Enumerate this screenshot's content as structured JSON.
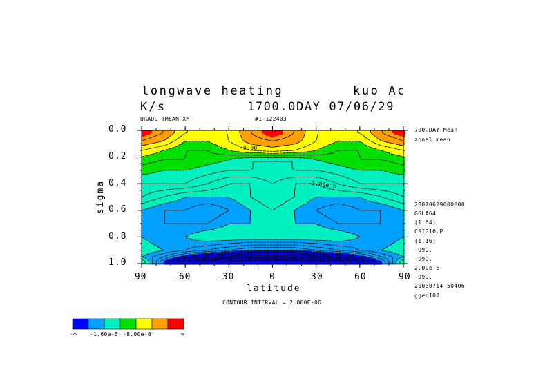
{
  "header": {
    "title_left": "longwave heating",
    "title_right": "kuo Ac",
    "units": "K/s",
    "time": "1700.0DAY 07/06/29",
    "variable": "QRADL TMEAN XM",
    "run_id": "#1-122403"
  },
  "side_info": [
    "700.DAY Mean",
    "zonal mean",
    "20070629000000",
    "GGLA64",
    "(1.64)",
    "CSIG16.P",
    "(1.16)",
    "-999.",
    "-999.",
    "2.00e-6",
    "-999.",
    "20030714  50406",
    "ggec102"
  ],
  "contour_interval": "CONTOUR INTERVAL = 2.000E-06",
  "contour_labels": [
    "0.00",
    "-1.00e-5"
  ],
  "colorbar": {
    "colors": [
      "#0000ff",
      "#00a0ff",
      "#00f0c0",
      "#00e000",
      "#ffff00",
      "#ffa000",
      "#ff0000"
    ],
    "labels": [
      "-∞",
      "-1.60e-5",
      "-8.00e-6",
      "∞"
    ]
  },
  "chart_data": {
    "type": "heatmap",
    "title": "longwave heating",
    "xlabel": "latitude",
    "ylabel": "sigma",
    "xlim": [
      -90,
      90
    ],
    "ylim": [
      1.0,
      0.0
    ],
    "x_ticks": [
      -90,
      -60,
      -30,
      0,
      30,
      60,
      90
    ],
    "x_tick_labels": [
      "-90",
      "-60",
      "-30",
      "0",
      "30",
      "60",
      "90"
    ],
    "y_ticks": [
      0.0,
      0.2,
      0.4,
      0.6,
      0.8,
      1.0
    ],
    "y_tick_labels": [
      "0.0",
      "0.2",
      "0.4",
      "0.6",
      "0.8",
      "1.0"
    ],
    "levels": [
      -1.6e-05,
      -8e-06,
      0.0
    ],
    "lat": [
      -90,
      -75,
      -60,
      -45,
      -30,
      -15,
      0,
      15,
      30,
      45,
      60,
      75,
      90
    ],
    "sigma": [
      0.02,
      0.08,
      0.15,
      0.22,
      0.3,
      0.4,
      0.5,
      0.6,
      0.7,
      0.8,
      0.9,
      0.95,
      0.985
    ],
    "values": [
      [
        4e-06,
        2e-06,
        -2e-06,
        -2e-06,
        -2e-06,
        2e-06,
        4e-06,
        2e-06,
        -2e-06,
        -2e-06,
        -2e-06,
        2e-06,
        4e-06
      ],
      [
        2e-06,
        0.0,
        -4e-06,
        -4e-06,
        -2e-06,
        1e-06,
        2e-06,
        1e-06,
        -2e-06,
        -4e-06,
        -4e-06,
        0.0,
        2e-06
      ],
      [
        -2e-06,
        -4e-06,
        -6e-06,
        -6e-06,
        -4e-06,
        -2e-06,
        -1e-06,
        -2e-06,
        -4e-06,
        -6e-06,
        -6e-06,
        -4e-06,
        -2e-06
      ],
      [
        -5e-06,
        -6e-06,
        -6e-06,
        -7e-06,
        -8e-06,
        -1e-05,
        -1e-05,
        -1e-05,
        -8e-06,
        -7e-06,
        -6e-06,
        -6e-06,
        -5e-06
      ],
      [
        -7e-06,
        -8e-06,
        -8e-06,
        -9e-06,
        -1e-05,
        -1e-05,
        -1e-05,
        -1e-05,
        -1e-05,
        -9e-06,
        -8e-06,
        -8e-06,
        -7e-06
      ],
      [
        -1e-05,
        -1e-05,
        -1e-05,
        -1.2e-05,
        -1.4e-05,
        -1.4e-05,
        -1.2e-05,
        -1.4e-05,
        -1.4e-05,
        -1.2e-05,
        -1e-05,
        -1e-05,
        -1e-05
      ],
      [
        -1.2e-05,
        -1.4e-05,
        -1.6e-05,
        -1.6e-05,
        -1.6e-05,
        -1.4e-05,
        -1.2e-05,
        -1.4e-05,
        -1.6e-05,
        -1.6e-05,
        -1.6e-05,
        -1.4e-05,
        -1.2e-05
      ],
      [
        -1.6e-05,
        -1.8e-05,
        -1.8e-05,
        -2e-05,
        -1.8e-05,
        -1.6e-05,
        -1.4e-05,
        -1.6e-05,
        -1.8e-05,
        -2e-05,
        -1.8e-05,
        -1.8e-05,
        -1.6e-05
      ],
      [
        -1.6e-05,
        -1.8e-05,
        -1.8e-05,
        -1.8e-05,
        -1.6e-05,
        -1.6e-05,
        -1.4e-05,
        -1.6e-05,
        -1.6e-05,
        -1.8e-05,
        -1.8e-05,
        -1.8e-05,
        -1.6e-05
      ],
      [
        -1.6e-05,
        -1.8e-05,
        -1.6e-05,
        -1.4e-05,
        -1.4e-05,
        -1.4e-05,
        -1.4e-05,
        -1.4e-05,
        -1.4e-05,
        -1.4e-05,
        -1.6e-05,
        -1.8e-05,
        -1.6e-05
      ],
      [
        -1.4e-05,
        -1.6e-05,
        -1.8e-05,
        -2e-05,
        -2.2e-05,
        -2.4e-05,
        -2.4e-05,
        -2.4e-05,
        -2.2e-05,
        -2e-05,
        -1.8e-05,
        -1.6e-05,
        -1.4e-05
      ],
      [
        -1.6e-05,
        -2e-05,
        -2.6e-05,
        -3e-05,
        -3.4e-05,
        -3.6e-05,
        -3.6e-05,
        -3.6e-05,
        -3.4e-05,
        -3e-05,
        -2.6e-05,
        -2e-05,
        -1.6e-05
      ],
      [
        -1.2e-05,
        -2.4e-05,
        -3.4e-05,
        -4e-05,
        -4.4e-05,
        -4.6e-05,
        -4.6e-05,
        -4.6e-05,
        -4.4e-05,
        -4e-05,
        -3.4e-05,
        -2.4e-05,
        -1.2e-05
      ]
    ]
  }
}
